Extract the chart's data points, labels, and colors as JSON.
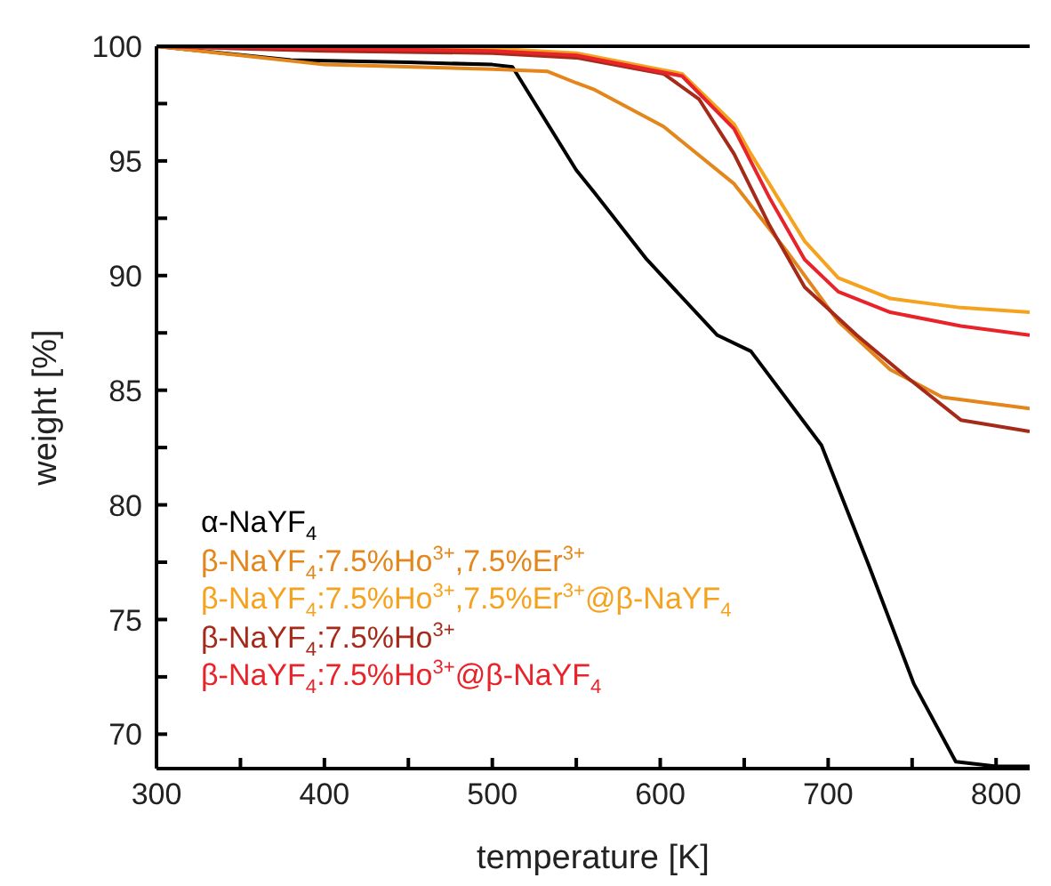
{
  "chart_data": {
    "type": "line",
    "xlabel": "temperature [K]",
    "ylabel": "weight [%]",
    "xlim": [
      300,
      820
    ],
    "ylim": [
      68.5,
      100
    ],
    "xticks": [
      300,
      {
        "value": 350,
        "label": null
      },
      400,
      {
        "value": 450,
        "label": null
      },
      500,
      {
        "value": 550,
        "label": null
      },
      600,
      {
        "value": 650,
        "label": null
      },
      700,
      {
        "value": 750,
        "label": null
      },
      800
    ],
    "yticks": [
      70,
      {
        "value": 72.5,
        "label": null
      },
      75,
      {
        "value": 77.5,
        "label": null
      },
      80,
      {
        "value": 82.5,
        "label": null
      },
      85,
      {
        "value": 87.5,
        "label": null
      },
      90,
      {
        "value": 92.5,
        "label": null
      },
      95,
      {
        "value": 97.5,
        "label": null
      },
      100
    ],
    "grid": false,
    "legend": "bottom left",
    "marker": "none",
    "line_style": "solid",
    "series": [
      {
        "name": "α-NaYF$_{4}$",
        "color": "#000000",
        "x": [
          300,
          380,
          450,
          500,
          512,
          550,
          561,
          592,
          634,
          654,
          696,
          724,
          751,
          776,
          800,
          820
        ],
        "values": [
          100,
          99.4,
          99.3,
          99.2,
          99.1,
          94.6,
          93.6,
          90.7,
          87.4,
          86.7,
          82.6,
          77.4,
          72.2,
          68.8,
          68.6,
          68.6
        ]
      },
      {
        "name": "β-NaYF$_{4}$:7.5%Ho$^{3+}$,7.5%Er$^{3+}$",
        "color": "#e3861c",
        "x": [
          300,
          350,
          400,
          500,
          533,
          550,
          561,
          602,
          644,
          675,
          706,
          737,
          768,
          820
        ],
        "values": [
          100,
          99.6,
          99.2,
          99,
          98.9,
          98.4,
          98.1,
          96.5,
          94,
          91.1,
          88,
          85.9,
          84.7,
          84.2
        ]
      },
      {
        "name": "β-NaYF$_{4}$:7.5%Ho$^{3+}$,7.5%Er$^{3+}$@β-NaYF$_{4}$",
        "color": "#f5a21e",
        "x": [
          300,
          500,
          550,
          613,
          644,
          654,
          686,
          706,
          737,
          779,
          820
        ],
        "values": [
          100,
          99.9,
          99.7,
          98.8,
          96.6,
          95.3,
          91.5,
          89.9,
          89,
          88.6,
          88.4
        ]
      },
      {
        "name": "β-NaYF$_{4}$:7.5%Ho$^{3+}$",
        "color": "#a52a1a",
        "x": [
          300,
          400,
          500,
          550,
          602,
          623,
          644,
          665,
          686,
          717,
          748,
          779,
          820
        ],
        "values": [
          100,
          99.8,
          99.7,
          99.5,
          98.8,
          97.7,
          95.3,
          92.2,
          89.5,
          87.4,
          85.5,
          83.7,
          83.2
        ]
      },
      {
        "name": "β-NaYF$_{4}$:7.5%Ho$^{3+}$@β-NaYF$_{4}$",
        "color": "#e8232a",
        "x": [
          300,
          500,
          550,
          613,
          644,
          665,
          686,
          706,
          737,
          779,
          820
        ],
        "values": [
          100,
          99.8,
          99.6,
          98.7,
          96.4,
          93.4,
          90.7,
          89.3,
          88.4,
          87.8,
          87.4
        ]
      }
    ]
  }
}
